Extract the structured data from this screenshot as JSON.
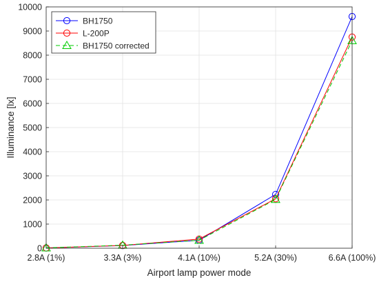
{
  "chart_data": {
    "type": "line",
    "title": "",
    "xlabel": "Airport lamp power mode",
    "ylabel": "Illuminance [lx]",
    "categories": [
      "2.8A (1%)",
      "3.3A (3%)",
      "4.1A (10%)",
      "5.2A (30%)",
      "6.6A (100%)"
    ],
    "ylim": [
      0,
      10000
    ],
    "yticks": [
      "0",
      "1000",
      "2000",
      "3000",
      "4000",
      "5000",
      "6000",
      "7000",
      "8000",
      "9000",
      "10000"
    ],
    "grid": true,
    "legend_position": "top-left",
    "series": [
      {
        "name": "BH1750",
        "values": [
          10,
          110,
          330,
          2230,
          9600
        ],
        "color": "#0000ff",
        "marker": "circle",
        "dash": "solid"
      },
      {
        "name": "L-200P",
        "values": [
          10,
          115,
          380,
          2050,
          8750
        ],
        "color": "#ff0000",
        "marker": "circle",
        "dash": "solid"
      },
      {
        "name": "BH1750 corrected",
        "values": [
          15,
          125,
          330,
          2020,
          8600
        ],
        "color": "#00cc00",
        "marker": "triangle",
        "dash": "dashed"
      }
    ]
  }
}
